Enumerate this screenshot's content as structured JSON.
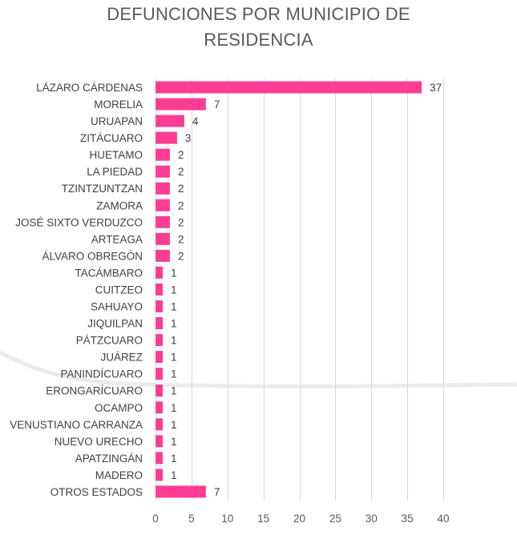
{
  "chart_data": {
    "type": "bar",
    "orientation": "horizontal",
    "title_lines": [
      "DEFUNCIONES POR MUNICIPIO DE",
      "RESIDENCIA"
    ],
    "categories": [
      "LÁZARO CÁRDENAS",
      "MORELIA",
      "URUAPAN",
      "ZITÁCUARO",
      "HUETAMO",
      "LA PIEDAD",
      "TZINTZUNTZAN",
      "ZAMORA",
      "JOSÉ SIXTO VERDUZCO",
      "ARTEAGA",
      "ÁLVARO OBREGÓN",
      "TACÁMBARO",
      "CUITZEO",
      "SAHUAYO",
      "JIQUILPAN",
      "PÁTZCUARO",
      "JUÁREZ",
      "PANINDÍCUARO",
      "ERONGARÍCUARO",
      "OCAMPO",
      "VENUSTIANO CARRANZA",
      "NUEVO URECHO",
      "APATZINGÁN",
      "MADERO",
      "OTROS ESTADOS"
    ],
    "values": [
      37,
      7,
      4,
      3,
      2,
      2,
      2,
      2,
      2,
      2,
      2,
      1,
      1,
      1,
      1,
      1,
      1,
      1,
      1,
      1,
      1,
      1,
      1,
      1,
      7
    ],
    "xlim": [
      0,
      40
    ],
    "xticks": [
      0,
      5,
      10,
      15,
      20,
      25,
      30,
      35,
      40
    ],
    "bar_color": "#fc3d93",
    "grid": true,
    "legend": "none"
  }
}
